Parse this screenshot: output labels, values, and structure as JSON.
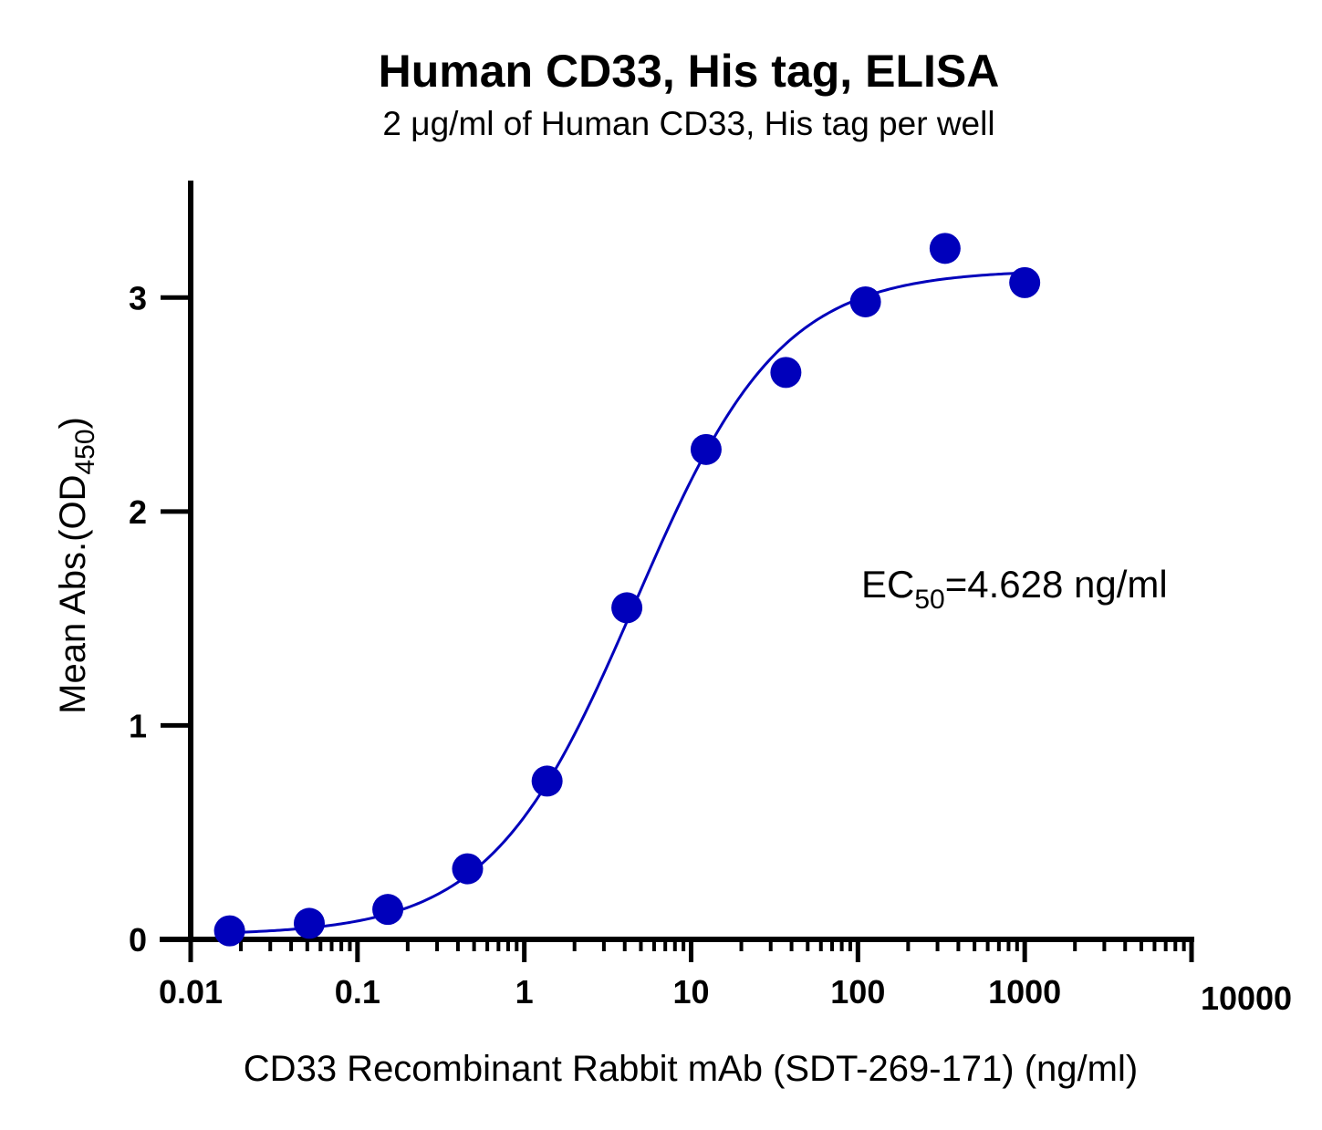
{
  "chart_data": {
    "type": "scatter",
    "title": "Human CD33, His tag, ELISA",
    "subtitle": "2 μg/ml of Human CD33, His tag per well",
    "xlabel": "CD33 Recombinant Rabbit mAb (SDT-269-171) (ng/ml)",
    "ylabel_main": "Mean Abs.(OD",
    "ylabel_sub": "450",
    "ylabel_close": ")",
    "x_scale": "log",
    "xlim": [
      0.01,
      10000
    ],
    "ylim": [
      0,
      3.5
    ],
    "x_ticks": [
      "0.01",
      "0.1",
      "1",
      "10",
      "100",
      "1000",
      "10000"
    ],
    "y_ticks": [
      "0",
      "1",
      "2",
      "3"
    ],
    "grid": false,
    "series": [
      {
        "color": "#0000bb",
        "x": [
          0.0171,
          0.0514,
          0.152,
          0.457,
          1.37,
          4.12,
          12.3,
          37.0,
          111,
          333,
          1000
        ],
        "y": [
          0.04,
          0.075,
          0.14,
          0.33,
          0.74,
          1.55,
          2.29,
          2.65,
          2.98,
          3.23,
          3.07
        ]
      }
    ],
    "fit_curve": {
      "model": "4PL",
      "bottom": 0.02,
      "top": 3.13,
      "ec50": 4.628,
      "hill": 1.0,
      "x_range": [
        0.0171,
        1000
      ]
    },
    "annotation": {
      "main": "EC",
      "sub": "50",
      "rest": "=4.628 ng/ml"
    }
  }
}
